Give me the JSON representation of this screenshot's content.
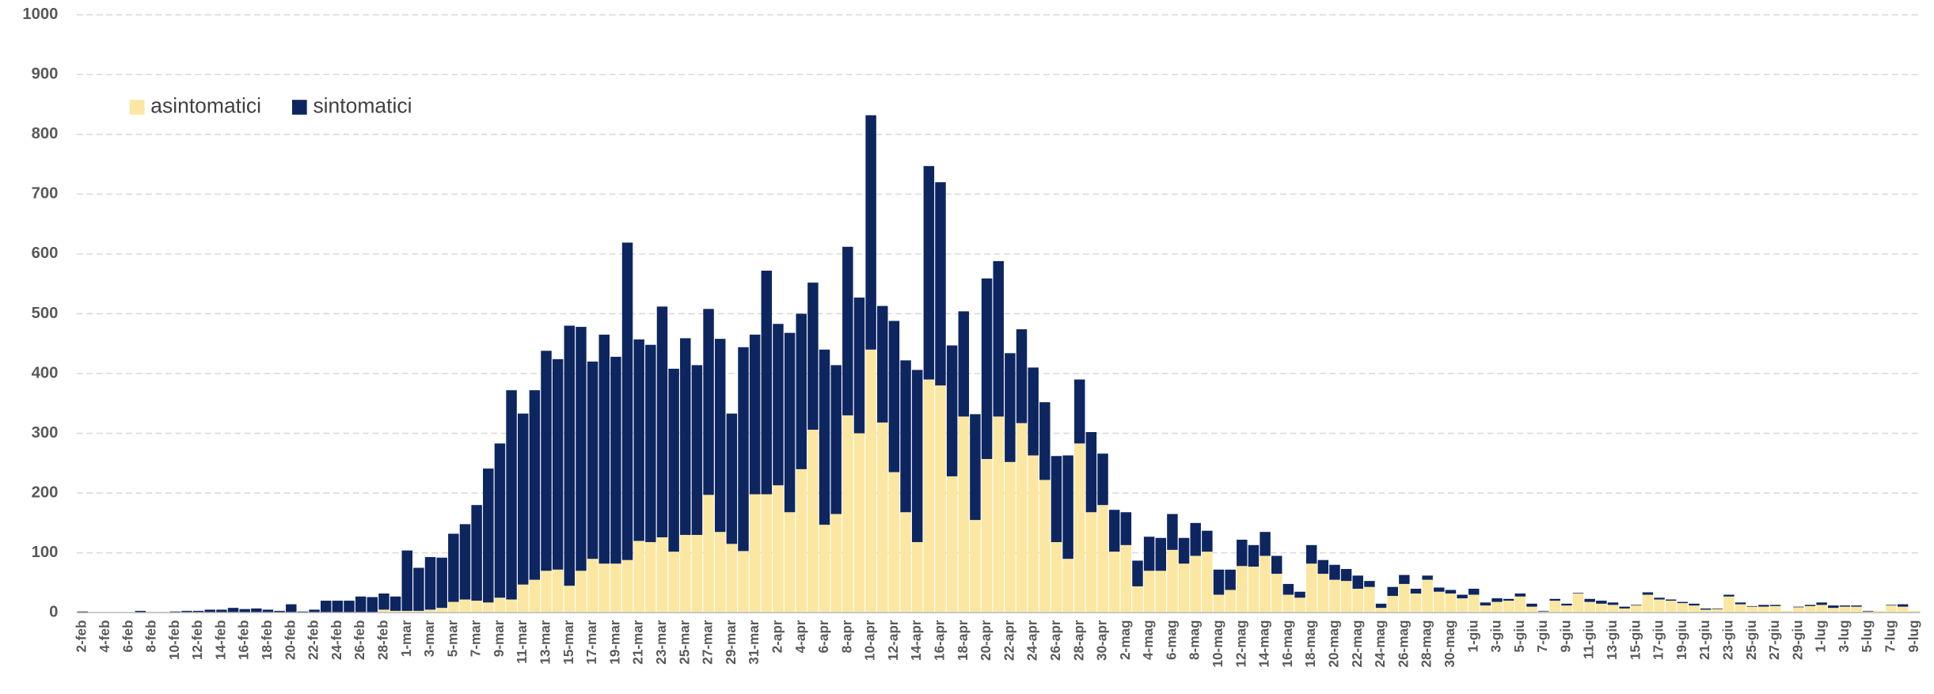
{
  "chart_data": {
    "type": "stacked_bar",
    "categories": [
      "2-feb",
      null,
      "4-feb",
      null,
      "6-feb",
      null,
      "8-feb",
      null,
      "10-feb",
      null,
      "12-feb",
      null,
      "14-feb",
      null,
      "16-feb",
      null,
      "18-feb",
      null,
      "20-feb",
      null,
      "22-feb",
      null,
      "24-feb",
      null,
      "26-feb",
      null,
      "28-feb",
      null,
      "1-mar",
      null,
      "3-mar",
      null,
      "5-mar",
      null,
      "7-mar",
      null,
      "9-mar",
      null,
      "11-mar",
      null,
      "13-mar",
      null,
      "15-mar",
      null,
      "17-mar",
      null,
      "19-mar",
      null,
      "21-mar",
      null,
      "23-mar",
      null,
      "25-mar",
      null,
      "27-mar",
      null,
      "29-mar",
      null,
      "31-mar",
      null,
      "2-apr",
      null,
      "4-apr",
      null,
      "6-apr",
      null,
      "8-apr",
      null,
      "10-apr",
      null,
      "12-apr",
      null,
      "14-apr",
      null,
      "16-apr",
      null,
      "18-apr",
      null,
      "20-apr",
      null,
      "22-apr",
      null,
      "24-apr",
      null,
      "26-apr",
      null,
      "28-apr",
      null,
      "30-apr",
      null,
      "2-mag",
      null,
      "4-mag",
      null,
      "6-mag",
      null,
      "8-mag",
      null,
      "10-mag",
      null,
      "12-mag",
      null,
      "14-mag",
      null,
      "16-mag",
      null,
      "18-mag",
      null,
      "20-mag",
      null,
      "22-mag",
      null,
      "24-mag",
      null,
      "26-mag",
      null,
      "28-mag",
      null,
      "30-mag",
      null,
      "1-giu",
      null,
      "3-giu",
      null,
      "5-giu",
      null,
      "7-giu",
      null,
      "9-giu",
      null,
      "11-giu",
      null,
      "13-giu",
      null,
      "15-giu",
      null,
      "17-giu",
      null,
      "19-giu",
      null,
      "21-giu",
      null,
      "23-giu",
      null,
      "25-giu",
      null,
      "27-giu",
      null,
      "29-giu",
      null,
      "1-lug",
      null,
      "3-lug",
      null,
      "5-lug",
      null,
      "7-lug",
      null,
      "9-lug"
    ],
    "series": [
      {
        "name": "asintomatici",
        "color": "#fbe7a1",
        "values": [
          0,
          0,
          0,
          0,
          0,
          0,
          0,
          0,
          0,
          0,
          0,
          0,
          0,
          0,
          0,
          0,
          0,
          0,
          0,
          0,
          0,
          0,
          0,
          0,
          0,
          0,
          5,
          3,
          3,
          3,
          5,
          8,
          18,
          22,
          20,
          17,
          25,
          22,
          47,
          55,
          70,
          72,
          45,
          70,
          90,
          82,
          82,
          88,
          120,
          118,
          126,
          102,
          130,
          130,
          197,
          135,
          115,
          103,
          198,
          198,
          213,
          168,
          240,
          306,
          147,
          165,
          330,
          300,
          440,
          318,
          235,
          168,
          118,
          390,
          380,
          228,
          328,
          155,
          257,
          328,
          252,
          317,
          263,
          222,
          118,
          90,
          283,
          168,
          180,
          102,
          113,
          44,
          70,
          70,
          105,
          82,
          95,
          102,
          30,
          38,
          78,
          77,
          95,
          65,
          30,
          25,
          82,
          65,
          55,
          53,
          40,
          43,
          8,
          28,
          48,
          32,
          55,
          35,
          32,
          24,
          30,
          12,
          18,
          20,
          27,
          10,
          2,
          20,
          12,
          32,
          18,
          15,
          13,
          7,
          12,
          30,
          22,
          20,
          16,
          12,
          5,
          6,
          27,
          14,
          10,
          10,
          11,
          3,
          9,
          11,
          13,
          8,
          10,
          10,
          2,
          3,
          12,
          10,
          3
        ]
      },
      {
        "name": "sintomatici",
        "color": "#0e2660",
        "values": [
          2,
          0,
          0,
          0,
          0,
          3,
          1,
          1,
          2,
          3,
          3,
          5,
          5,
          8,
          6,
          7,
          5,
          3,
          14,
          2,
          5,
          20,
          20,
          20,
          27,
          26,
          27,
          24,
          101,
          72,
          88,
          84,
          114,
          126,
          160,
          224,
          258,
          350,
          286,
          317,
          368,
          352,
          435,
          408,
          330,
          383,
          346,
          531,
          337,
          330,
          386,
          306,
          329,
          284,
          311,
          323,
          218,
          341,
          267,
          374,
          270,
          300,
          260,
          246,
          293,
          249,
          282,
          227,
          392,
          195,
          253,
          254,
          288,
          357,
          340,
          219,
          176,
          177,
          302,
          260,
          182,
          157,
          147,
          130,
          144,
          173,
          107,
          134,
          86,
          70,
          55,
          43,
          57,
          55,
          60,
          43,
          55,
          35,
          42,
          34,
          44,
          36,
          40,
          30,
          18,
          10,
          31,
          23,
          25,
          20,
          22,
          10,
          7,
          15,
          15,
          8,
          7,
          7,
          6,
          6,
          10,
          5,
          6,
          3,
          5,
          5,
          1,
          3,
          3,
          1,
          5,
          5,
          4,
          3,
          1,
          4,
          3,
          2,
          2,
          3,
          2,
          1,
          3,
          3,
          1,
          3,
          2,
          0,
          1,
          2,
          4,
          4,
          2,
          2,
          1,
          0,
          1,
          4,
          0
        ]
      }
    ],
    "ylim": [
      0,
      1000
    ],
    "yticks": [
      0,
      100,
      200,
      300,
      400,
      500,
      600,
      700,
      800,
      900,
      1000
    ],
    "grid": true,
    "legend": "top-left"
  }
}
